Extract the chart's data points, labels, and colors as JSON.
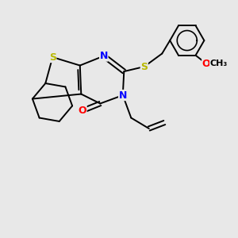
{
  "bg_color": "#e8e8e8",
  "atom_colors": {
    "S": "#b8b800",
    "N": "#0000ff",
    "O": "#ff0000",
    "C": "#000000"
  },
  "bond_color": "#000000",
  "lw": 1.4,
  "font_size_atoms": 9,
  "fig_size": [
    3.0,
    3.0
  ],
  "dpi": 100
}
